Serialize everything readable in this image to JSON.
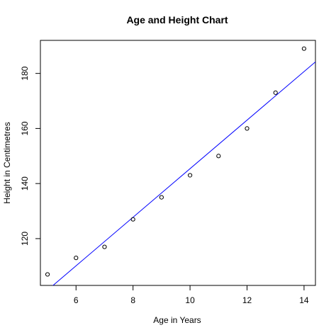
{
  "chart_data": {
    "type": "scatter",
    "title": "Age and Height Chart",
    "xlabel": "Age in Years",
    "ylabel": "Height in Centimetres",
    "xlim": [
      4.75,
      14.4
    ],
    "ylim": [
      103,
      192
    ],
    "xticks": [
      6,
      8,
      10,
      12,
      14
    ],
    "yticks": [
      120,
      140,
      160,
      180
    ],
    "grid": false,
    "points": {
      "x": [
        5,
        6,
        7,
        8,
        9,
        10,
        11,
        12,
        13,
        14
      ],
      "y": [
        107,
        113,
        117,
        127,
        135,
        143,
        150,
        160,
        173,
        189
      ]
    },
    "fit_line": {
      "color": "#0000ff",
      "x": [
        5,
        14.4
      ],
      "y": [
        101.3,
        184.2
      ]
    },
    "point_color": "#000000"
  }
}
